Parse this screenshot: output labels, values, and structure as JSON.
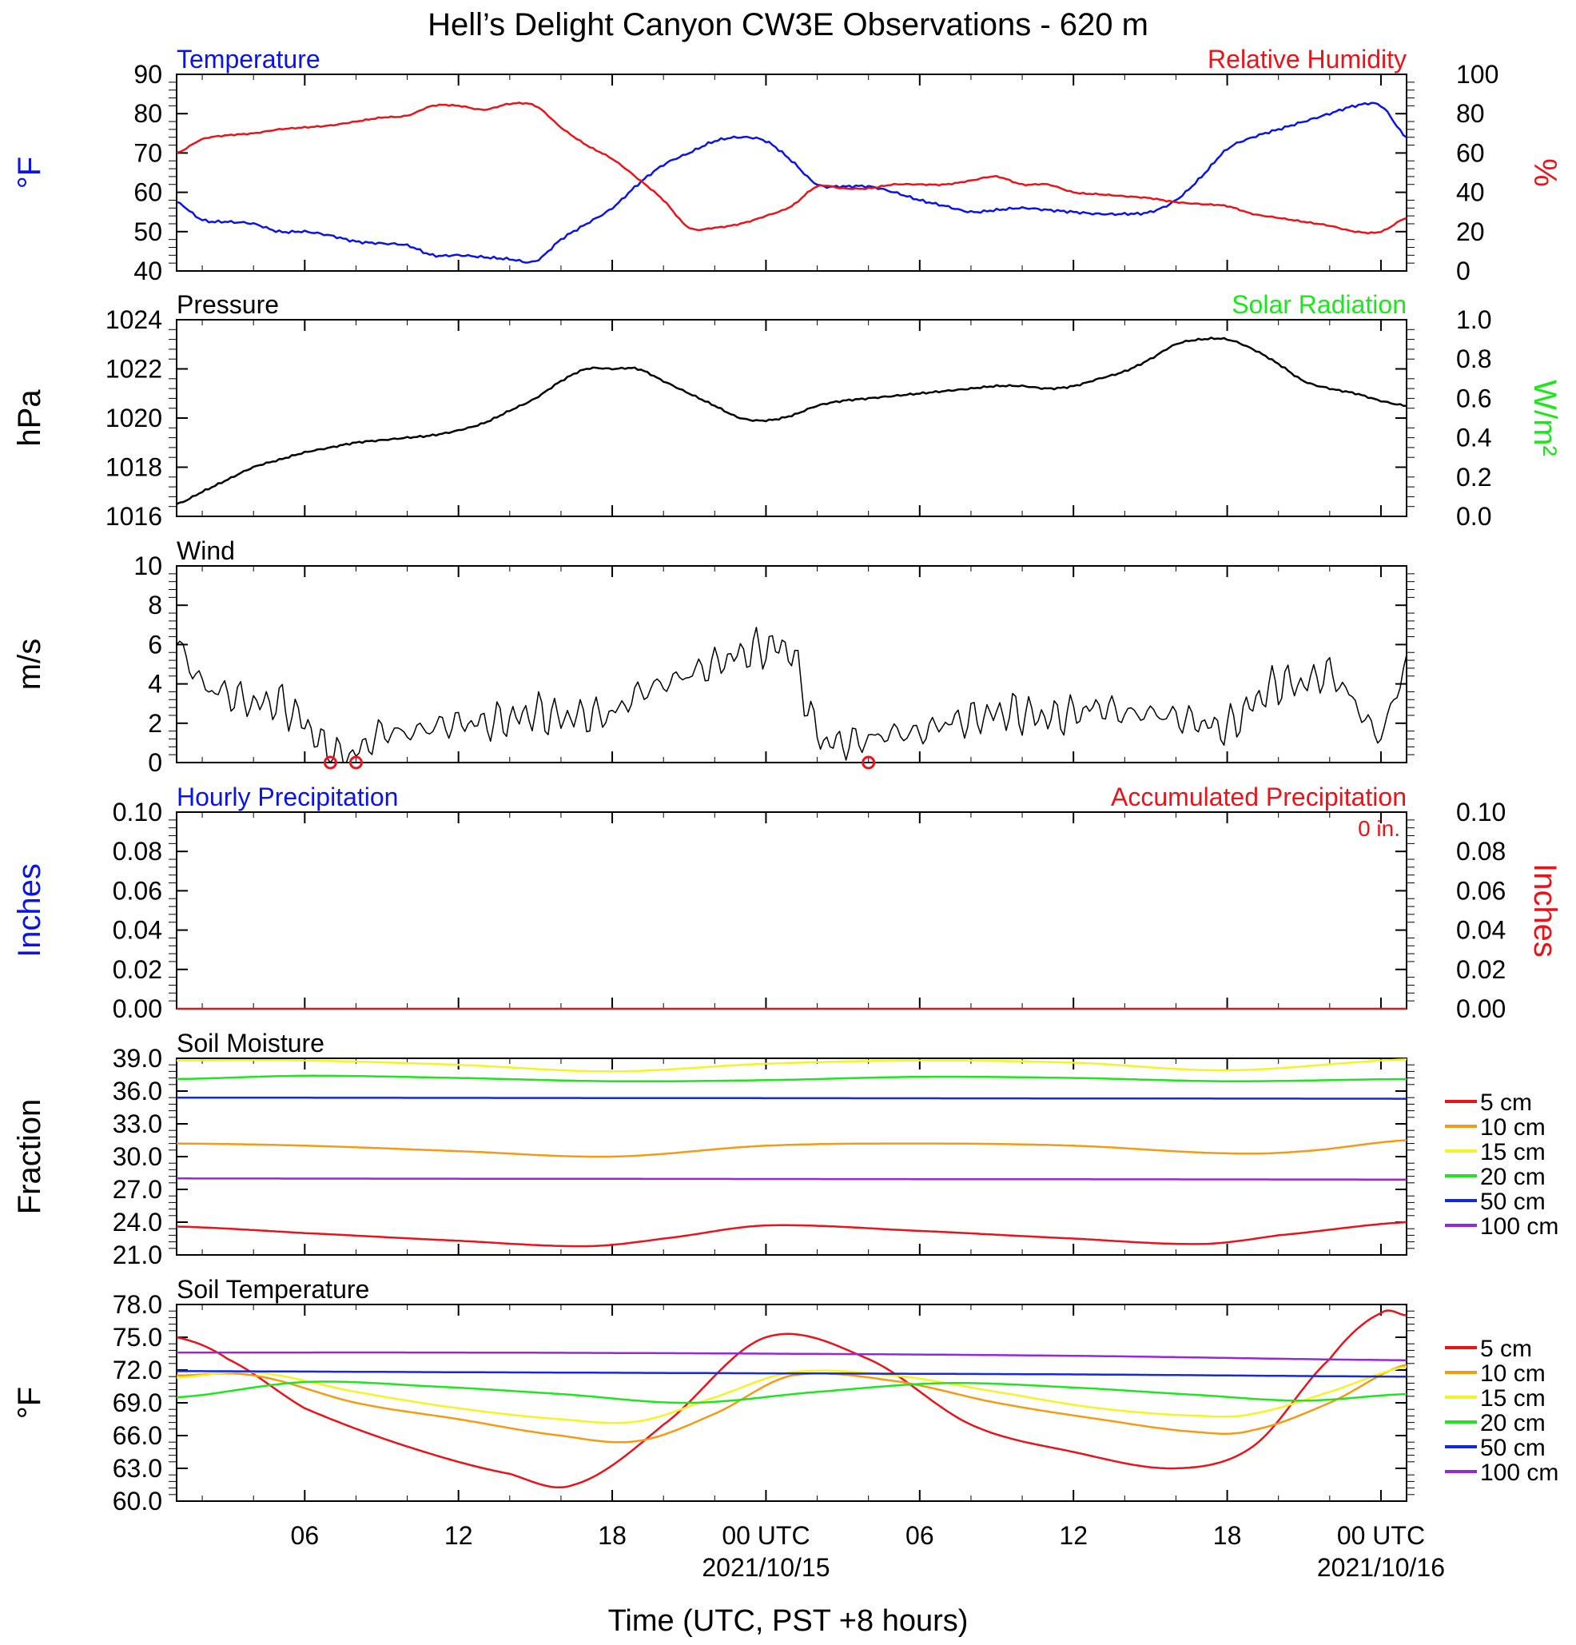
{
  "title": "Hell’s Delight Canyon CW3E Observations - 620 m",
  "xlabel": "Time (UTC, PST +8 hours)",
  "x_ticks": [
    {
      "h": 6,
      "label": "06",
      "date": ""
    },
    {
      "h": 12,
      "label": "12",
      "date": ""
    },
    {
      "h": 18,
      "label": "18",
      "date": ""
    },
    {
      "h": 24,
      "label": "00 UTC",
      "date": "2021/10/15"
    },
    {
      "h": 30,
      "label": "06",
      "date": ""
    },
    {
      "h": 36,
      "label": "12",
      "date": ""
    },
    {
      "h": 42,
      "label": "18",
      "date": ""
    },
    {
      "h": 48,
      "label": "00 UTC",
      "date": "2021/10/16"
    }
  ],
  "x_range_hours": [
    1,
    49
  ],
  "soil_legend": [
    {
      "label": "5 cm",
      "color": "#e8141a"
    },
    {
      "label": "10 cm",
      "color": "#f59a14"
    },
    {
      "label": "15 cm",
      "color": "#f3f325"
    },
    {
      "label": "20 cm",
      "color": "#1ee61e"
    },
    {
      "label": "50 cm",
      "color": "#1428dc"
    },
    {
      "label": "100 cm",
      "color": "#9628dc"
    }
  ],
  "chart_data": [
    {
      "type": "line",
      "id": "temp_rh",
      "title_left": "Temperature",
      "title_right": "Relative Humidity",
      "ylabel_left": "°F",
      "ylabel_right": "%",
      "ylim": [
        40,
        90
      ],
      "yticks": [
        40,
        50,
        60,
        70,
        80,
        90
      ],
      "ylim_right": [
        0,
        100
      ],
      "yticks_right": [
        0,
        20,
        40,
        60,
        80,
        100
      ],
      "series": [
        {
          "name": "Temperature",
          "color": "#0a14e6",
          "axis": "left",
          "x": [
            1,
            2,
            3,
            4,
            5,
            6,
            7,
            8,
            9,
            10,
            11,
            12,
            13,
            14,
            15,
            16,
            17,
            18,
            19,
            20,
            21,
            22,
            23,
            24,
            25,
            26,
            27,
            28,
            29,
            30,
            31,
            32,
            33,
            34,
            35,
            36,
            37,
            38,
            39,
            40,
            41,
            42,
            43,
            44,
            45,
            46,
            47,
            48,
            49
          ],
          "y": [
            57.5,
            53,
            52.5,
            52,
            50,
            50,
            49,
            47.5,
            47,
            46.5,
            44,
            44,
            43.5,
            43,
            42.5,
            48,
            52,
            56,
            62,
            67,
            70,
            73,
            74,
            73,
            68,
            62,
            61.5,
            61.5,
            60,
            58,
            56.5,
            55,
            55.5,
            56,
            55.5,
            55,
            54.5,
            54.5,
            55,
            58,
            64,
            71,
            74,
            76,
            78,
            80,
            82,
            82,
            74
          ]
        },
        {
          "name": "Relative Humidity",
          "color": "#e8141a",
          "axis": "right",
          "x": [
            1,
            2,
            3,
            4,
            5,
            6,
            7,
            8,
            9,
            10,
            11,
            12,
            13,
            14,
            15,
            16,
            17,
            18,
            19,
            20,
            21,
            22,
            23,
            24,
            25,
            26,
            27,
            28,
            29,
            30,
            31,
            32,
            33,
            34,
            35,
            36,
            37,
            38,
            39,
            40,
            41,
            42,
            43,
            44,
            45,
            46,
            47,
            48,
            49
          ],
          "y": [
            60,
            67,
            69,
            70,
            72,
            73,
            74,
            76,
            78,
            79,
            84,
            84,
            82,
            85,
            84,
            73,
            64,
            57,
            47,
            36,
            22,
            22,
            24,
            28,
            33,
            43,
            42,
            42,
            44,
            44,
            44,
            46,
            48,
            44,
            44,
            40,
            39,
            38,
            37,
            35,
            34,
            33,
            29,
            27,
            25,
            23,
            20,
            20,
            27
          ]
        }
      ]
    },
    {
      "type": "line",
      "id": "pressure",
      "title_left": "Pressure",
      "title_right": "Solar Radiation",
      "ylabel_left": "hPa",
      "ylabel_right": "W/m²",
      "ylim": [
        1016,
        1024
      ],
      "yticks": [
        1016,
        1018,
        1020,
        1022,
        1024
      ],
      "ylim_right": [
        0.0,
        1.0
      ],
      "yticks_right": [
        "0.0",
        "0.2",
        "0.4",
        "0.6",
        "0.8",
        "1.0"
      ],
      "series": [
        {
          "name": "Pressure",
          "color": "#000000",
          "axis": "left",
          "x": [
            1,
            2,
            3,
            4,
            5,
            6,
            7,
            8,
            9,
            10,
            11,
            12,
            13,
            14,
            15,
            16,
            17,
            18,
            19,
            20,
            21,
            22,
            23,
            24,
            25,
            26,
            27,
            28,
            29,
            30,
            31,
            32,
            33,
            34,
            35,
            36,
            37,
            38,
            39,
            40,
            41,
            42,
            43,
            44,
            45,
            46,
            47,
            48,
            49
          ],
          "y": [
            1016.5,
            1017,
            1017.5,
            1018,
            1018.3,
            1018.6,
            1018.8,
            1019,
            1019.1,
            1019.2,
            1019.3,
            1019.5,
            1019.8,
            1020.3,
            1020.8,
            1021.5,
            1022,
            1022,
            1022,
            1021.5,
            1021,
            1020.5,
            1020,
            1019.9,
            1020.1,
            1020.5,
            1020.7,
            1020.8,
            1020.9,
            1021,
            1021.1,
            1021.2,
            1021.3,
            1021.3,
            1021.2,
            1021.3,
            1021.6,
            1021.9,
            1022.4,
            1023,
            1023.2,
            1023.2,
            1022.8,
            1022.2,
            1021.5,
            1021.2,
            1021,
            1020.7,
            1020.5
          ]
        }
      ]
    },
    {
      "type": "line",
      "id": "wind",
      "title_left": "Wind",
      "ylabel_left": "m/s",
      "ylim": [
        0,
        10
      ],
      "yticks": [
        0,
        2,
        4,
        6,
        8,
        10
      ],
      "series": [
        {
          "name": "Wind",
          "color": "#000000",
          "axis": "left",
          "x": [
            1,
            2,
            3,
            4,
            5,
            6,
            7,
            8,
            9,
            10,
            11,
            12,
            13,
            14,
            15,
            16,
            17,
            18,
            19,
            20,
            21,
            22,
            23,
            24,
            25,
            26,
            27,
            28,
            29,
            30,
            31,
            32,
            33,
            34,
            35,
            36,
            37,
            38,
            39,
            40,
            41,
            42,
            43,
            44,
            45,
            46,
            47,
            48,
            49
          ],
          "y": [
            6,
            4,
            3.5,
            3,
            3,
            2,
            0.5,
            0.5,
            1.5,
            1.5,
            1.8,
            2,
            2,
            2.2,
            2.5,
            2.3,
            2.4,
            2.5,
            3.5,
            4,
            4.5,
            5,
            5.5,
            5.8,
            5.5,
            1.5,
            1,
            1.2,
            1.5,
            1.5,
            2,
            2.2,
            2.5,
            2.5,
            2.3,
            2.5,
            2.8,
            2.5,
            2.5,
            2.3,
            2,
            1.8,
            3,
            4,
            4,
            4.5,
            3,
            1.5,
            5
          ]
        }
      ],
      "zero_markers_hours": [
        7,
        8,
        4
      ]
    },
    {
      "type": "line",
      "id": "precip",
      "title_left": "Hourly Precipitation",
      "title_right": "Accumulated Precipitation",
      "annotation": "0 in.",
      "ylabel_left": "Inches",
      "ylabel_right": "Inches",
      "ylim": [
        0,
        0.1
      ],
      "yticks": [
        "0.00",
        "0.02",
        "0.04",
        "0.06",
        "0.08",
        "0.10"
      ],
      "ylim_right": [
        0,
        0.1
      ],
      "yticks_right": [
        "0.00",
        "0.02",
        "0.04",
        "0.06",
        "0.08",
        "0.10"
      ],
      "series": [
        {
          "name": "Accumulated Precipitation",
          "color": "#e8141a",
          "axis": "right",
          "x": [
            1,
            49
          ],
          "y": [
            0,
            0
          ]
        }
      ]
    },
    {
      "type": "line",
      "id": "soil_moisture",
      "title_left": "Soil Moisture",
      "ylabel_left": "Fraction",
      "ylim": [
        21,
        39
      ],
      "yticks": [
        "21.0",
        "24.0",
        "27.0",
        "30.0",
        "33.0",
        "36.0",
        "39.0"
      ],
      "series": [
        {
          "name": "5 cm",
          "color": "#e8141a",
          "axis": "left",
          "x": [
            1,
            6,
            12,
            17,
            20,
            24,
            30,
            36,
            41,
            44,
            49
          ],
          "y": [
            23.6,
            23,
            22.3,
            21.8,
            22.5,
            23.7,
            23.2,
            22.5,
            22,
            22.8,
            24
          ]
        },
        {
          "name": "10 cm",
          "color": "#f59a14",
          "axis": "left",
          "x": [
            1,
            6,
            12,
            18,
            24,
            30,
            36,
            42,
            45,
            49
          ],
          "y": [
            31.2,
            31,
            30.5,
            30,
            31,
            31.2,
            31,
            30.3,
            30.5,
            31.5
          ]
        },
        {
          "name": "15 cm",
          "color": "#f3f325",
          "axis": "left",
          "x": [
            1,
            6,
            12,
            18,
            24,
            30,
            36,
            42,
            49
          ],
          "y": [
            38.8,
            38.8,
            38.4,
            37.8,
            38.5,
            38.8,
            38.6,
            37.9,
            38.9
          ]
        },
        {
          "name": "20 cm",
          "color": "#1ee61e",
          "axis": "left",
          "x": [
            1,
            6,
            12,
            18,
            24,
            30,
            36,
            42,
            49
          ],
          "y": [
            37.1,
            37.4,
            37.2,
            36.9,
            37,
            37.3,
            37.2,
            36.9,
            37.1
          ]
        },
        {
          "name": "50 cm",
          "color": "#1428dc",
          "axis": "left",
          "x": [
            1,
            49
          ],
          "y": [
            35.4,
            35.3
          ]
        },
        {
          "name": "100 cm",
          "color": "#9628dc",
          "axis": "left",
          "x": [
            1,
            49
          ],
          "y": [
            28,
            27.9
          ]
        }
      ]
    },
    {
      "type": "line",
      "id": "soil_temperature",
      "title_left": "Soil Temperature",
      "ylabel_left": "°F",
      "ylim": [
        60,
        78
      ],
      "yticks": [
        "60.0",
        "63.0",
        "66.0",
        "69.0",
        "72.0",
        "75.0",
        "78.0"
      ],
      "series": [
        {
          "name": "5 cm",
          "color": "#e8141a",
          "axis": "left",
          "x": [
            1,
            3,
            6,
            10,
            14,
            16.5,
            20,
            24,
            28,
            32,
            36,
            40,
            43,
            46,
            48,
            49
          ],
          "y": [
            75,
            73,
            68.5,
            65,
            62.5,
            61.5,
            67,
            75,
            73,
            67,
            64.5,
            63,
            65,
            73,
            77.2,
            77
          ]
        },
        {
          "name": "10 cm",
          "color": "#f59a14",
          "axis": "left",
          "x": [
            1,
            4,
            8,
            12,
            16,
            19,
            22,
            25,
            29,
            33,
            37,
            41,
            43,
            46,
            49
          ],
          "y": [
            71.5,
            71.5,
            69,
            67.5,
            66,
            65.5,
            68,
            71.5,
            71,
            69,
            67.5,
            66.3,
            66.5,
            69,
            72.5
          ]
        },
        {
          "name": "15 cm",
          "color": "#f3f325",
          "axis": "left",
          "x": [
            1,
            4,
            8,
            12,
            16,
            19,
            22,
            25,
            29,
            33,
            37,
            41,
            43,
            46,
            49
          ],
          "y": [
            71.3,
            71.8,
            70,
            68.5,
            67.5,
            67.3,
            69.5,
            71.8,
            71.5,
            70,
            68.5,
            67.8,
            68,
            70,
            72.3
          ]
        },
        {
          "name": "20 cm",
          "color": "#1ee61e",
          "axis": "left",
          "x": [
            1,
            6,
            11,
            16,
            21,
            26,
            31,
            36,
            41,
            45,
            49
          ],
          "y": [
            69.5,
            70.9,
            70.5,
            69.8,
            69,
            70,
            70.8,
            70.4,
            69.7,
            69.2,
            69.8
          ]
        },
        {
          "name": "50 cm",
          "color": "#1428dc",
          "axis": "left",
          "x": [
            1,
            12,
            24,
            36,
            49
          ],
          "y": [
            71.9,
            71.8,
            71.7,
            71.6,
            71.4
          ]
        },
        {
          "name": "100 cm",
          "color": "#9628dc",
          "axis": "left",
          "x": [
            1,
            12,
            24,
            36,
            49
          ],
          "y": [
            73.6,
            73.6,
            73.5,
            73.3,
            72.9
          ]
        }
      ]
    }
  ]
}
